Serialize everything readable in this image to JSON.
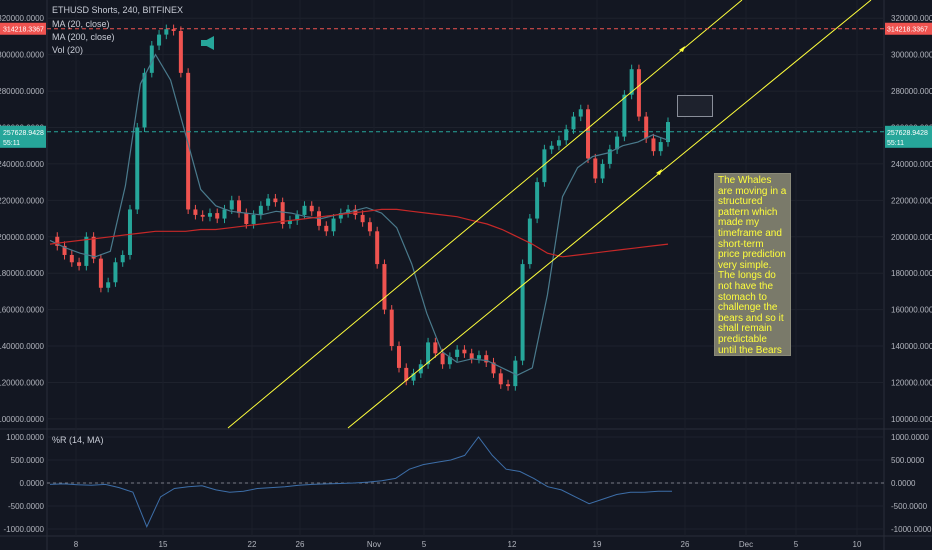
{
  "header": {
    "line1": "ETHUSD Shorts, 240, BITFINEX",
    "line2": "MA (20, close)",
    "line3": "MA (200, close)",
    "line4": "Vol (20)"
  },
  "oscillator_label": "%R (14, MA)",
  "note": "The Whales are moving in a structured pattern which made my timeframe and short-term price prediction very simple. The longs do not have the stomach to challenge the bears and so it shall remain predictable until the Bears let it go!",
  "colors": {
    "background": "#131722",
    "up": "#26a69a",
    "down": "#ef5350",
    "ma20": "#4a7a8c",
    "ma200": "#c62828",
    "channel": "#ffff3c",
    "note_bg": "#7a7a6a",
    "note_text": "#ffff3c"
  },
  "chart_data": [
    {
      "type": "candlestick",
      "title": "ETHUSD Shorts, 240, BITFINEX",
      "series": [
        {
          "name": "MA (20, close)",
          "values": [
            198000,
            194000,
            191000,
            189000,
            192000,
            228000,
            284000,
            300000,
            286000,
            256000,
            226000,
            217000,
            214000,
            213000,
            212000,
            214000,
            213000,
            211000,
            210000,
            212000,
            214000,
            216000,
            213000,
            205000,
            185000,
            158000,
            137000,
            131000,
            133000,
            132000,
            128000,
            124000,
            128000,
            168000,
            222000,
            238000,
            244000,
            246000,
            250000,
            252000,
            256000,
            253000
          ]
        },
        {
          "name": "MA (200, close)",
          "values": [
            196000,
            197000,
            198000,
            199000,
            200000,
            201000,
            202000,
            203000,
            203000,
            203000,
            204000,
            204000,
            205000,
            206000,
            207000,
            208000,
            209000,
            210000,
            211000,
            212000,
            213000,
            214000,
            215000,
            215000,
            214000,
            213000,
            212000,
            211000,
            209000,
            207000,
            204000,
            200000,
            196000,
            191000,
            189000,
            190000,
            191000,
            192000,
            193000,
            194000,
            195000,
            196000
          ]
        }
      ],
      "price_path": [
        200000,
        195000,
        190000,
        186000,
        184000,
        200000,
        188000,
        172000,
        175000,
        186000,
        190000,
        215000,
        260000,
        290000,
        305000,
        311000,
        314000,
        313000,
        290000,
        215000,
        212000,
        211000,
        213000,
        210000,
        215000,
        220000,
        213000,
        207000,
        212000,
        217000,
        221000,
        219000,
        207000,
        209000,
        212000,
        217000,
        214000,
        206000,
        203000,
        210000,
        213000,
        215000,
        212000,
        208000,
        203000,
        185000,
        160000,
        140000,
        128000,
        121000,
        125000,
        130000,
        142000,
        136000,
        130000,
        134000,
        138000,
        136000,
        133000,
        135000,
        131000,
        125000,
        119000,
        118000,
        132000,
        185000,
        210000,
        230000,
        248000,
        250000,
        253000,
        259000,
        266000,
        270000,
        243000,
        232000,
        240000,
        248000,
        255000,
        278000,
        292000,
        266000,
        254000,
        247000,
        252000,
        263000
      ],
      "markers": {
        "current_price": "257628.9428",
        "current_time": "55:11",
        "high_line": "314218.3367"
      },
      "y_ticks": [
        "320000.0000",
        "300000.0000",
        "280000.0000",
        "260000.0000",
        "240000.0000",
        "220000.0000",
        "200000.0000",
        "180000.0000",
        "160000.0000",
        "140000.0000",
        "120000.0000",
        "100000.0000"
      ],
      "x_ticks": [
        "8",
        "15",
        "22",
        "26",
        "Nov",
        "5",
        "12",
        "19",
        "26",
        "Dec",
        "5",
        "10"
      ],
      "ylim": [
        95000,
        330000
      ]
    },
    {
      "type": "line",
      "title": "%R (14, MA)",
      "y_ticks": [
        "1000.0000",
        "500.0000",
        "0.0000",
        "-500.0000",
        "-1000.0000"
      ],
      "ylim": [
        -1000,
        1000
      ],
      "values": [
        -30,
        -20,
        -40,
        -50,
        -30,
        -100,
        -200,
        -950,
        -300,
        -120,
        -80,
        -60,
        -150,
        -200,
        -180,
        -120,
        -100,
        -80,
        -50,
        -30,
        -20,
        -10,
        0,
        20,
        50,
        100,
        300,
        400,
        450,
        500,
        600,
        1000,
        600,
        300,
        250,
        100,
        -80,
        -150,
        -300,
        -450,
        -350,
        -250,
        -200,
        -200,
        -180,
        -180
      ]
    }
  ]
}
